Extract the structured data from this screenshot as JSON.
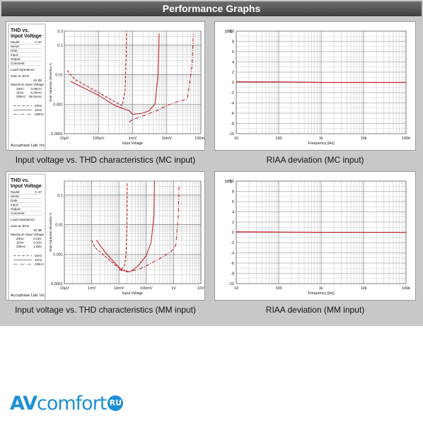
{
  "header": {
    "title": "Performance Graphs"
  },
  "brand": {
    "part1": "AV",
    "part2": "comfort",
    "badge": "RU"
  },
  "chart_data": [
    {
      "type": "line",
      "id": "thd_mc",
      "caption": "Input voltage vs. THD characteristics (MC input)",
      "xlabel": "Input Voltage",
      "ylabel": "Total Harmonic Distortion %",
      "xscale": "log",
      "yscale": "log",
      "xlim": [
        1e-05,
        0.1
      ],
      "ylim": [
        0.0001,
        0.3
      ],
      "x_ticks": [
        "10μV",
        "100μV",
        "1mV",
        "10mV",
        "100mV"
      ],
      "y_ticks": [
        "0.3",
        "0.1",
        "0.01",
        "0.001",
        "0.0001"
      ],
      "side": {
        "title1": "THD vs.",
        "title2": "Input Voltage",
        "fields": [
          {
            "k": "Model:",
            "v": "C-47"
          },
          {
            "k": "Serial:",
            "v": ""
          },
          {
            "k": "Date:",
            "v": ""
          },
          {
            "k": "Input:",
            "v": ""
          },
          {
            "k": "Output:",
            "v": ""
          },
          {
            "k": "Comment:",
            "v": ""
          }
        ],
        "load": "Load Impedance:",
        "gain_label": "Gain at 1kHz",
        "gain": "64 dB",
        "max_label": "Maximum Input Voltage",
        "max_rows": [
          {
            "f": "20Hz:",
            "v": "0.66mV"
          },
          {
            "f": "1kHz:",
            "v": "6.00mV"
          },
          {
            "f": "20kHz:",
            "v": "58.91mV"
          }
        ],
        "legend": [
          "20Hz",
          "1kHz",
          "20kHz"
        ],
        "maker": "Accuphase Lab. Inc."
      },
      "series": [
        {
          "style": "dash",
          "x": [
            1.2e-05,
            2e-05,
            4e-05,
            0.0001,
            0.0003,
            0.0005,
            0.0006,
            0.00065,
            0.00066
          ],
          "y": [
            0.014,
            0.007,
            0.0045,
            0.0025,
            0.0012,
            0.0009,
            0.003,
            0.05,
            0.3
          ]
        },
        {
          "style": "solid",
          "x": [
            1.5e-05,
            3e-05,
            0.0001,
            0.0003,
            0.0008,
            0.001,
            0.002,
            0.003,
            0.0045,
            0.0055,
            0.006
          ],
          "y": [
            0.006,
            0.004,
            0.002,
            0.0009,
            0.0006,
            0.00045,
            0.0005,
            0.0006,
            0.001,
            0.008,
            0.25
          ]
        },
        {
          "style": "dashdot",
          "x": [
            0.0008,
            0.001,
            0.002,
            0.005,
            0.01,
            0.02,
            0.04,
            0.055,
            0.06
          ],
          "y": [
            0.00025,
            0.0003,
            0.0004,
            0.0006,
            0.0009,
            0.0012,
            0.0015,
            0.02,
            0.25
          ]
        }
      ]
    },
    {
      "type": "line",
      "id": "riaa_mc",
      "caption": "RIAA deviation (MC input)",
      "unit": "[dB]",
      "xlabel": "Frequency [Hz]",
      "xscale": "log",
      "xlim": [
        10,
        100000
      ],
      "ylim": [
        -10,
        10
      ],
      "x_ticks": [
        "10",
        "100",
        "1k",
        "10k",
        "100k"
      ],
      "y_ticks": [
        "10",
        "8",
        "6",
        "4",
        "2",
        "0",
        "-2",
        "-4",
        "-6",
        "-8",
        "-10"
      ],
      "series": [
        {
          "style": "solid",
          "x": [
            10,
            100,
            1000,
            10000,
            100000
          ],
          "y": [
            0.1,
            0.1,
            0,
            0,
            0
          ]
        }
      ]
    },
    {
      "type": "line",
      "id": "thd_mm",
      "caption": "Input voltage vs. THD characteristics (MM input)",
      "xlabel": "Input Voltage",
      "ylabel": "Total Harmonic Distortion %",
      "xscale": "log",
      "yscale": "log",
      "xlim": [
        0.0001,
        10
      ],
      "ylim": [
        0.0001,
        0.3
      ],
      "x_ticks": [
        "10μV",
        "1mV",
        "10mV",
        "100mV",
        "1V",
        "10V"
      ],
      "y_ticks": [
        "0.1",
        "0.01",
        "0.001",
        "0.0001"
      ],
      "side": {
        "title1": "THD vs.",
        "title2": "Input Voltage",
        "fields": [
          {
            "k": "Model:",
            "v": "C-47"
          },
          {
            "k": "Serial:",
            "v": ""
          },
          {
            "k": "Date:",
            "v": ""
          },
          {
            "k": "Input:",
            "v": ""
          },
          {
            "k": "Output:",
            "v": ""
          },
          {
            "k": "Comment:",
            "v": ""
          }
        ],
        "load": "Load Impedance:",
        "gain_label": "Gain at 1kHz",
        "gain": "34 dB",
        "max_label": "Maximum Input Voltage",
        "max_rows": [
          {
            "f": "20Hz:",
            "v": "0.02V"
          },
          {
            "f": "1kHz:",
            "v": "0.20V"
          },
          {
            "f": "20kHz:",
            "v": "1.58V"
          }
        ],
        "legend": [
          "20Hz",
          "1kHz",
          "20kHz"
        ],
        "maker": "Accuphase Lab. Inc."
      },
      "series": [
        {
          "style": "dash",
          "x": [
            0.001,
            0.0012,
            0.0015,
            0.002,
            0.004,
            0.008,
            0.012,
            0.016,
            0.018,
            0.0195,
            0.02
          ],
          "y": [
            0.003,
            0.002,
            0.0015,
            0.0012,
            0.0007,
            0.0004,
            0.0003,
            0.0004,
            0.001,
            0.01,
            0.25
          ]
        },
        {
          "style": "solid",
          "x": [
            0.0015,
            0.003,
            0.006,
            0.012,
            0.025,
            0.05,
            0.1,
            0.15,
            0.19,
            0.2
          ],
          "y": [
            0.003,
            0.0012,
            0.0006,
            0.0003,
            0.00025,
            0.0004,
            0.0009,
            0.0025,
            0.02,
            0.3
          ]
        },
        {
          "style": "dashdot",
          "x": [
            0.01,
            0.02,
            0.05,
            0.1,
            0.3,
            0.8,
            1.2,
            1.5,
            1.58
          ],
          "y": [
            0.0003,
            0.00025,
            0.0003,
            0.0004,
            0.0007,
            0.0012,
            0.002,
            0.02,
            0.2
          ]
        }
      ]
    },
    {
      "type": "line",
      "id": "riaa_mm",
      "caption": "RIAA deviation (MM input)",
      "unit": "[dB]",
      "xlabel": "Frequency [Hz]",
      "xscale": "log",
      "xlim": [
        10,
        100000
      ],
      "ylim": [
        -10,
        10
      ],
      "x_ticks": [
        "10",
        "100",
        "1k",
        "10k",
        "100k"
      ],
      "y_ticks": [
        "10",
        "8",
        "6",
        "4",
        "2",
        "0",
        "-2",
        "-4",
        "-6",
        "-8",
        "-10"
      ],
      "series": [
        {
          "style": "solid",
          "x": [
            10,
            100,
            1000,
            10000,
            100000
          ],
          "y": [
            0.1,
            0.05,
            0,
            0,
            0
          ]
        }
      ]
    }
  ]
}
